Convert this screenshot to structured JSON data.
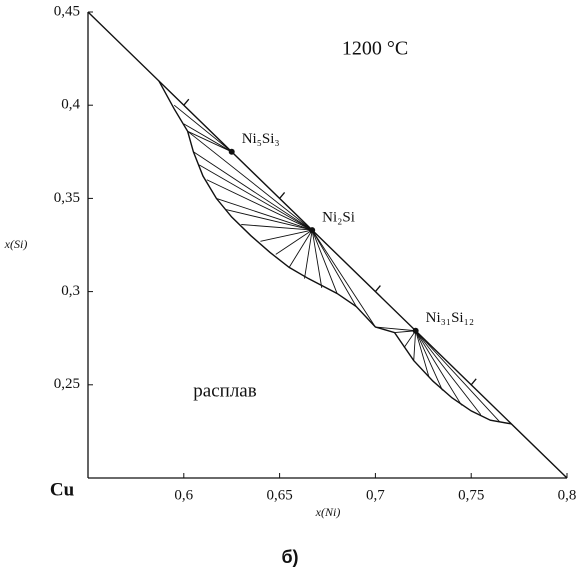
{
  "chart_data": {
    "type": "phase",
    "title": "1200 °C",
    "x_label": "x(Ni)",
    "y_label": "x(Si)",
    "annotations": [
      "расплав",
      "Cu"
    ],
    "caption": "б)",
    "xlim": [
      0.55,
      0.8
    ],
    "ylim": [
      0.2,
      0.45
    ],
    "xticks": [
      {
        "value": 0.6,
        "label": "0,6"
      },
      {
        "value": 0.65,
        "label": "0,65"
      },
      {
        "value": 0.7,
        "label": "0,7"
      },
      {
        "value": 0.75,
        "label": "0,75"
      },
      {
        "value": 0.8,
        "label": "0,8"
      }
    ],
    "yticks": [
      {
        "value": 0.25,
        "label": "0,25"
      },
      {
        "value": 0.3,
        "label": "0,3"
      },
      {
        "value": 0.35,
        "label": "0,35"
      },
      {
        "value": 0.4,
        "label": "0,4"
      },
      {
        "value": 0.45,
        "label": "0,45"
      }
    ],
    "boundary": {
      "x": [
        0.55,
        0.8
      ],
      "y": [
        0.45,
        0.2
      ]
    },
    "liquidus": {
      "x": [
        0.587,
        0.595,
        0.602,
        0.605,
        0.61,
        0.617,
        0.625,
        0.635,
        0.645,
        0.655,
        0.665,
        0.68,
        0.69,
        0.7,
        0.71,
        0.72,
        0.73,
        0.74,
        0.75,
        0.76,
        0.771
      ],
      "y": [
        0.413,
        0.398,
        0.386,
        0.375,
        0.362,
        0.35,
        0.34,
        0.33,
        0.321,
        0.313,
        0.307,
        0.299,
        0.292,
        0.281,
        0.278,
        0.263,
        0.252,
        0.243,
        0.236,
        0.231,
        0.229
      ]
    },
    "compounds": [
      {
        "label": "Ni₅Si₃",
        "x": 0.625,
        "y": 0.375,
        "tie_x": [
          0.59,
          0.595,
          0.6,
          0.602
        ],
        "tie_y": [
          0.41,
          0.4,
          0.39,
          0.386
        ]
      },
      {
        "label": "Ni₂Si",
        "x": 0.667,
        "y": 0.333,
        "tie_x": [
          0.602,
          0.605,
          0.608,
          0.612,
          0.617,
          0.622,
          0.63,
          0.64,
          0.648,
          0.655,
          0.663,
          0.672,
          0.68,
          0.69,
          0.7
        ],
        "tie_y": [
          0.386,
          0.375,
          0.368,
          0.36,
          0.35,
          0.344,
          0.336,
          0.327,
          0.32,
          0.313,
          0.307,
          0.302,
          0.299,
          0.292,
          0.281
        ]
      },
      {
        "label": "Ni₃₁Si₁₂",
        "x": 0.721,
        "y": 0.279,
        "tie_x": [
          0.7,
          0.71,
          0.715,
          0.72,
          0.728,
          0.735,
          0.745,
          0.755,
          0.765
        ],
        "tie_y": [
          0.281,
          0.278,
          0.27,
          0.263,
          0.254,
          0.247,
          0.239,
          0.234,
          0.23
        ]
      }
    ]
  }
}
